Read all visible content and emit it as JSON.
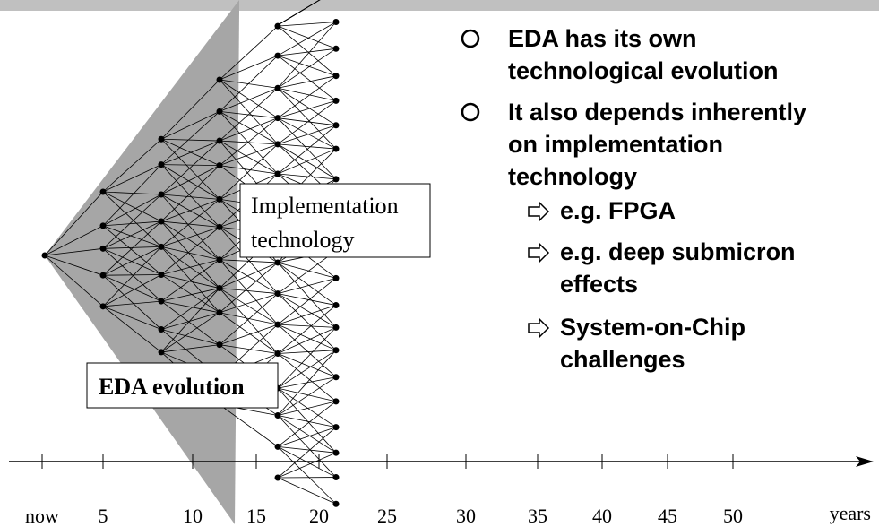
{
  "diagram": {
    "labels": {
      "implementation": [
        "Implementation",
        "technology"
      ],
      "eda": "EDA evolution"
    },
    "axis": {
      "ticks": [
        "now",
        "5",
        "10",
        "15",
        "20",
        "25",
        "30",
        "35",
        "40",
        "45",
        "50"
      ],
      "unit": "years"
    },
    "bullets": [
      {
        "lines": [
          "EDA has its own",
          "technological evolution"
        ]
      },
      {
        "lines": [
          "It also depends inherently",
          "on implementation",
          "technology"
        ],
        "sub": [
          {
            "lines": [
              "e.g. FPGA"
            ]
          },
          {
            "lines": [
              "e.g. deep submicron",
              "effects"
            ]
          },
          {
            "lines": [
              "System-on-Chip",
              "challenges"
            ]
          }
        ]
      }
    ]
  }
}
